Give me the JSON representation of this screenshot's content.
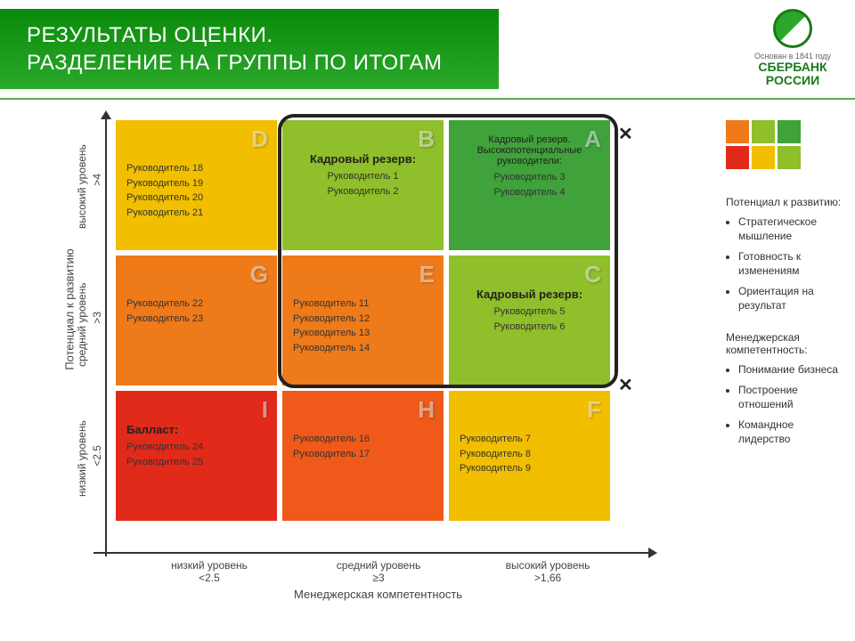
{
  "header": {
    "line1": "РЕЗУЛЬТАТЫ ОЦЕНКИ.",
    "line2": "РАЗДЕЛЕНИЕ НА ГРУППЫ ПО ИТОГАМ"
  },
  "logo": {
    "founded": "Основан в 1841 году",
    "name1": "СБЕРБАНК",
    "name2": "РОССИИ"
  },
  "axes": {
    "y_label": "Потенциал к развитию",
    "x_label": "Менеджерская компетентность",
    "rows": [
      {
        "label": "высокий  уровень",
        "val": ">4"
      },
      {
        "label": "средний уровень",
        "val": ">3"
      },
      {
        "label": "низкий уровень",
        "val": "<2.5"
      }
    ],
    "cols": [
      {
        "label": "низкий уровень",
        "val": "<2.5"
      },
      {
        "label": "средний уровень",
        "val": "≥3"
      },
      {
        "label": "высокий уровень",
        "val": ">1,66"
      }
    ]
  },
  "cells": {
    "D": {
      "bg": "#f2bf00",
      "title": "",
      "lines": [
        "Руководитель 18",
        "Руководитель 19",
        "Руководитель 20",
        "Руководитель 21"
      ],
      "title_center": false
    },
    "B": {
      "bg": "#8fbf2a",
      "title": "Кадровый резерв:",
      "lines": [
        "Руководитель 1",
        "Руководитель 2"
      ],
      "title_center": true
    },
    "A": {
      "bg": "#3fa23a",
      "title": "Кадровый резерв. Высокопотенциальные руководители:",
      "lines": [
        "Руководитель 3",
        "Руководитель 4"
      ],
      "title_center": true,
      "small_title": true
    },
    "G": {
      "bg": "#ef7a1a",
      "title": "",
      "lines": [
        "Руководитель 22",
        "Руководитель 23"
      ],
      "title_center": false
    },
    "E": {
      "bg": "#ef7a1a",
      "title": "",
      "lines": [
        "Руководитель 11",
        "Руководитель 12",
        "Руководитель 13",
        "Руководитель 14"
      ],
      "title_center": false
    },
    "C": {
      "bg": "#8fbf2a",
      "title": "Кадровый резерв:",
      "lines": [
        "Руководитель 5",
        "Руководитель 6"
      ],
      "title_center": true
    },
    "I": {
      "bg": "#e22a1a",
      "title": "Балласт:",
      "lines": [
        "Руководитель 24",
        "Руководитель 25"
      ],
      "title_center": false
    },
    "H": {
      "bg": "#ef5a1a",
      "title": "",
      "lines": [
        "Руководитель 16",
        "Руководитель 17"
      ],
      "title_center": false
    },
    "F": {
      "bg": "#f2bf00",
      "title": "",
      "lines": [
        "Руководитель 7",
        "Руководитель 8",
        "Руководитель 9"
      ],
      "title_center": false
    }
  },
  "cell_order": [
    "D",
    "B",
    "A",
    "G",
    "E",
    "C",
    "I",
    "H",
    "F"
  ],
  "mini_grid_colors": [
    "#ef7a1a",
    "#8fbf2a",
    "#3fa23a",
    "#e22a1a",
    "#f2bf00",
    "#8fbf2a"
  ],
  "side": {
    "heading1": "Потенциал к развитию:",
    "list1": [
      "Стратегическое мышление",
      "Готовность к изменениям",
      "Ориентация на результат"
    ],
    "heading2": "Менеджерская компетентность:",
    "list2": [
      "Понимание бизнеса",
      "Построение отношений",
      "Командное лидерство"
    ]
  }
}
